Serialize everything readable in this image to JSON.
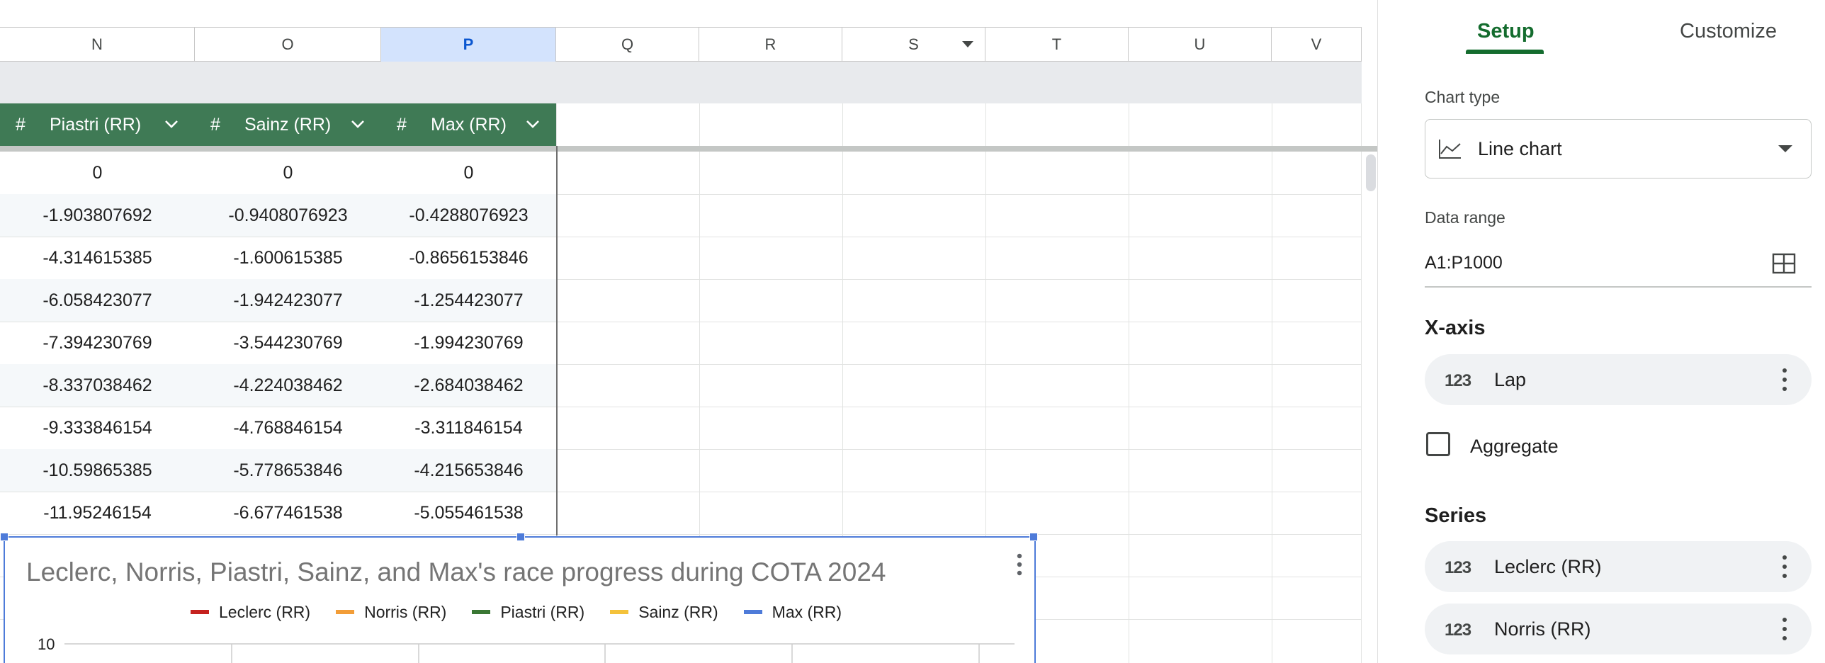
{
  "sheet": {
    "columns": [
      {
        "letter": "N",
        "selected": false
      },
      {
        "letter": "O",
        "selected": false
      },
      {
        "letter": "P",
        "selected": true
      },
      {
        "letter": "Q",
        "selected": false
      },
      {
        "letter": "R",
        "selected": false
      },
      {
        "letter": "S",
        "selected": false,
        "filter_icon": true
      },
      {
        "letter": "T",
        "selected": false
      },
      {
        "letter": "U",
        "selected": false
      },
      {
        "letter": "V",
        "selected": false
      }
    ],
    "table": {
      "header_color": "#3f7a55",
      "headers": [
        {
          "type_icon": "#",
          "label": "Piastri (RR)"
        },
        {
          "type_icon": "#",
          "label": "Sainz (RR)"
        },
        {
          "type_icon": "#",
          "label": "Max (RR)"
        }
      ],
      "rows": [
        [
          "0",
          "0",
          "0"
        ],
        [
          "-1.903807692",
          "-0.9408076923",
          "-0.4288076923"
        ],
        [
          "-4.314615385",
          "-1.600615385",
          "-0.8656153846"
        ],
        [
          "-6.058423077",
          "-1.942423077",
          "-1.254423077"
        ],
        [
          "-7.394230769",
          "-3.544230769",
          "-1.994230769"
        ],
        [
          "-8.337038462",
          "-4.224038462",
          "-2.684038462"
        ],
        [
          "-9.333846154",
          "-4.768846154",
          "-3.311846154"
        ],
        [
          "-10.59865385",
          "-5.778653846",
          "-4.215653846"
        ],
        [
          "-11.95246154",
          "-6.677461538",
          "-5.055461538"
        ]
      ]
    }
  },
  "chart": {
    "title": "Leclerc, Norris, Piastri, Sainz, and Max's race progress during COTA 2024",
    "legend": [
      {
        "label": "Leclerc (RR)",
        "color": "#c5221f"
      },
      {
        "label": "Norris (RR)",
        "color": "#f29d38"
      },
      {
        "label": "Piastri (RR)",
        "color": "#3a7734"
      },
      {
        "label": "Sainz (RR)",
        "color": "#f4c23b"
      },
      {
        "label": "Max (RR)",
        "color": "#4e7bd9"
      }
    ],
    "y_top_tick": "10",
    "accent": "#4e7bd9"
  },
  "chart_data": {
    "type": "line",
    "title": "Leclerc, Norris, Piastri, Sainz, and Max's race progress during COTA 2024",
    "series": [
      {
        "name": "Leclerc (RR)",
        "values": []
      },
      {
        "name": "Norris (RR)",
        "values": []
      },
      {
        "name": "Piastri (RR)",
        "values": []
      },
      {
        "name": "Sainz (RR)",
        "values": []
      },
      {
        "name": "Max (RR)",
        "values": []
      }
    ],
    "ytick_labels": [
      "10"
    ],
    "grid": true,
    "legend": "top"
  },
  "panel": {
    "tabs": [
      {
        "label": "Setup",
        "active": true
      },
      {
        "label": "Customize",
        "active": false
      }
    ],
    "accent": "#146c2e",
    "chart_type_label": "Chart type",
    "chart_type_value": "Line chart",
    "data_range_label": "Data range",
    "data_range_value": "A1:P1000",
    "x_axis_title": "X-axis",
    "x_axis_field": {
      "icon": "123",
      "label": "Lap"
    },
    "aggregate_label": "Aggregate",
    "aggregate_checked": false,
    "series_title": "Series",
    "series_fields": [
      {
        "icon": "123",
        "label": "Leclerc (RR)"
      },
      {
        "icon": "123",
        "label": "Norris (RR)"
      }
    ]
  }
}
